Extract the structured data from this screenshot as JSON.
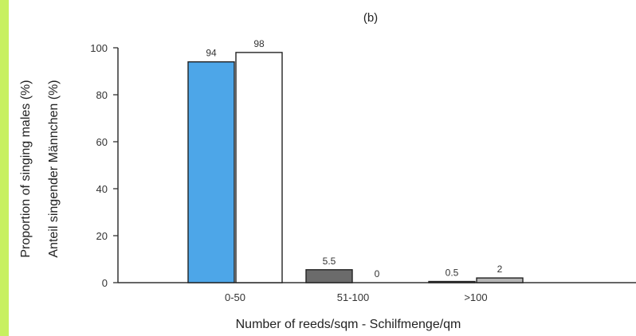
{
  "chart_data": {
    "type": "bar",
    "title": "(b)",
    "categories": [
      "0-50",
      "51-100",
      ">100"
    ],
    "series": [
      {
        "values": [
          94,
          5.5,
          0.5
        ],
        "color": "#4da6e8"
      },
      {
        "values": [
          98,
          0,
          2
        ],
        "color": "#ffffff"
      }
    ],
    "data_labels": [
      [
        "94",
        "5.5",
        "0.5"
      ],
      [
        "98",
        "0",
        "2"
      ]
    ],
    "bar_fill_overrides": [
      [
        "#4da6e8",
        "#6b6b6b",
        "#9a9a9a"
      ],
      [
        "#ffffff",
        "#ffffff",
        "#b5b5b5"
      ]
    ],
    "xlabel": "Number of reeds/sqm - Schilfmenge/qm",
    "ylabel_lines": [
      "Proportion of singing males (%)",
      "Anteil singender Männchen (%)"
    ],
    "yticks": [
      0,
      20,
      40,
      60,
      80,
      100
    ],
    "ylim": [
      0,
      100
    ],
    "grid": false,
    "legend": "none"
  }
}
